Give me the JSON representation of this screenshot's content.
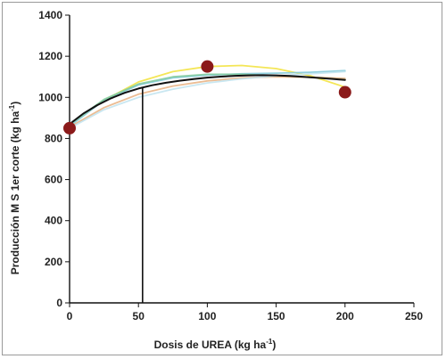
{
  "chart_data": {
    "type": "scatter",
    "xlabel": "Dosis de UREA (kg ha",
    "xlabel_sup": "-1",
    "xlabel_close": ")",
    "ylabel": "Producción M S 1er corte (kg ha",
    "ylabel_sup": "-1",
    "ylabel_close": ")",
    "xlim": [
      0,
      250
    ],
    "ylim": [
      0,
      1400
    ],
    "x_ticks": [
      0,
      50,
      100,
      150,
      200,
      250
    ],
    "y_ticks": [
      0,
      200,
      400,
      600,
      800,
      1000,
      1200,
      1400
    ],
    "series": [
      {
        "kind": "points",
        "color": "#8b1a1a",
        "x": [
          0,
          100,
          200
        ],
        "y": [
          850,
          1150,
          1025
        ]
      },
      {
        "kind": "fit",
        "color": "#111111",
        "x": [
          0,
          10,
          20,
          30,
          40,
          50,
          60,
          70,
          80,
          90,
          100,
          110,
          120,
          130,
          140,
          150,
          160,
          170,
          180,
          190,
          200
        ],
        "y": [
          870,
          921,
          962,
          995,
          1022,
          1043,
          1059,
          1071,
          1081,
          1089,
          1096,
          1101,
          1105,
          1107,
          1108,
          1107,
          1104,
          1100,
          1095,
          1090,
          1085
        ]
      },
      {
        "kind": "fit",
        "color": "#f2e23a",
        "x": [
          0,
          25,
          50,
          75,
          100,
          125,
          150,
          175,
          200
        ],
        "y": [
          865,
          985,
          1075,
          1125,
          1150,
          1155,
          1140,
          1105,
          1050
        ]
      },
      {
        "kind": "fit",
        "color": "#7ec8d8",
        "x": [
          0,
          25,
          50,
          75,
          100,
          125,
          150,
          175,
          200
        ],
        "y": [
          860,
          985,
          1060,
          1095,
          1108,
          1115,
          1118,
          1122,
          1130
        ]
      },
      {
        "kind": "fit",
        "color": "#7fc99a",
        "x": [
          0,
          25,
          50,
          75,
          100,
          125,
          150,
          175,
          200
        ],
        "y": [
          870,
          990,
          1065,
          1100,
          1112,
          1112,
          1105,
          1098,
          1090
        ]
      },
      {
        "kind": "fit",
        "color": "#e8b080",
        "x": [
          0,
          25,
          50,
          75,
          100,
          125,
          150,
          175,
          200
        ],
        "y": [
          855,
          950,
          1015,
          1055,
          1080,
          1095,
          1100,
          1098,
          1092
        ]
      },
      {
        "kind": "fit",
        "color": "#bfe3ef",
        "x": [
          0,
          25,
          50,
          75,
          100,
          125,
          150,
          175,
          200
        ],
        "y": [
          850,
          940,
          1000,
          1040,
          1070,
          1090,
          1105,
          1115,
          1125
        ]
      }
    ],
    "reference_line": {
      "x": 53,
      "y_from": 0,
      "y_to": 1045,
      "color": "#111111"
    }
  }
}
